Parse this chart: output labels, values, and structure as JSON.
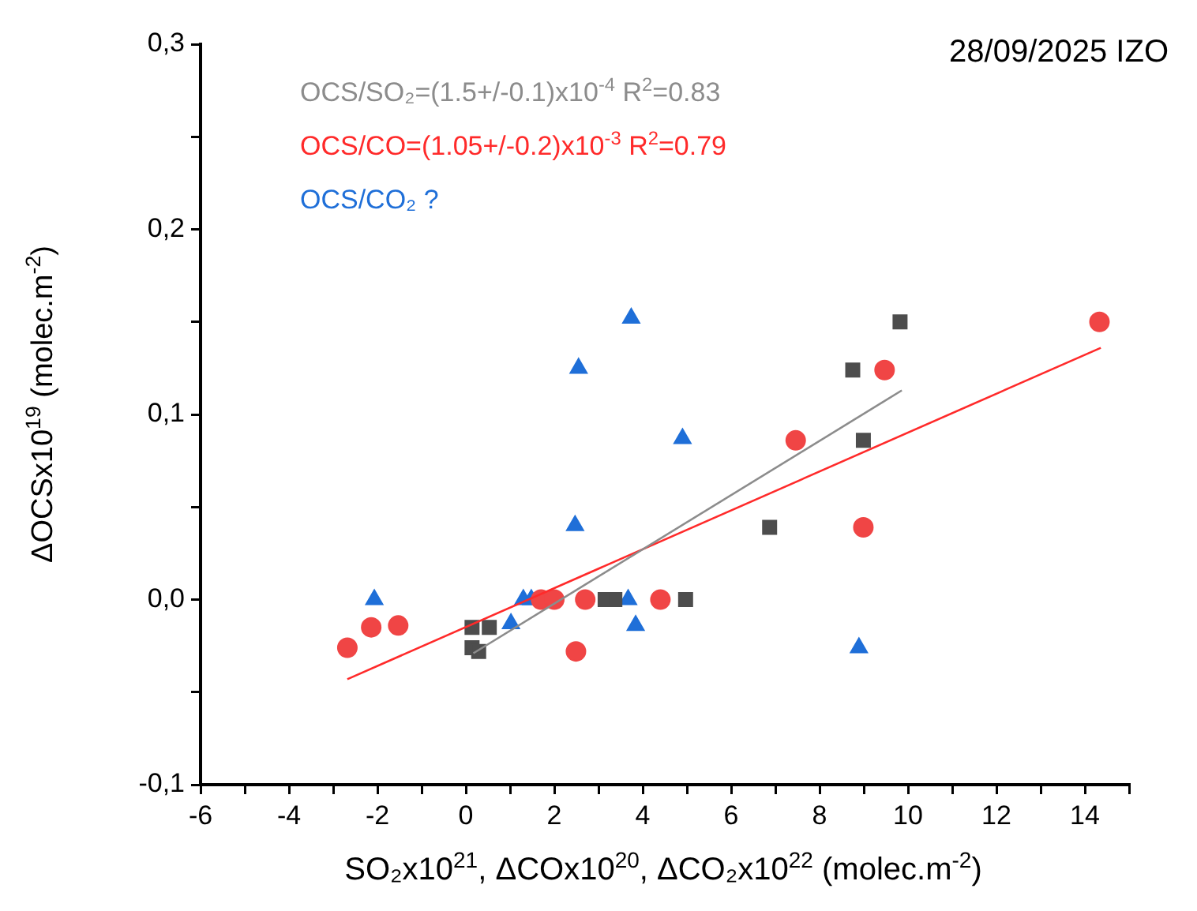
{
  "chart_data": {
    "type": "scatter",
    "title": "28/09/2025 IZO",
    "xlabel": "SO₂x10$^{21}$, ΔCOx10$^{20}$, ΔCO₂x10$^{22}$ (molec.m$^{-2}$)",
    "ylabel": "ΔOCSx10$^{19}$ (molec.m$^{-2}$)",
    "xlim": [
      -6,
      15
    ],
    "ylim": [
      -0.1,
      0.3
    ],
    "xticks": [
      -6,
      {
        "value": -5,
        "label": null
      },
      -4,
      {
        "value": -3,
        "label": null
      },
      -2,
      {
        "value": -1,
        "label": null
      },
      0,
      {
        "value": 1,
        "label": null
      },
      2,
      {
        "value": 3,
        "label": null
      },
      4,
      {
        "value": 5,
        "label": null
      },
      6,
      {
        "value": 7,
        "label": null
      },
      8,
      {
        "value": 9,
        "label": null
      },
      10,
      {
        "value": 11,
        "label": null
      },
      12,
      {
        "value": 13,
        "label": null
      },
      14,
      {
        "value": 15,
        "label": null
      }
    ],
    "yticks": [
      {
        "value": -0.1,
        "label": "-0,1"
      },
      {
        "value": -0.05,
        "label": null
      },
      {
        "value": 0,
        "label": "0,0"
      },
      {
        "value": 0.05,
        "label": null
      },
      {
        "value": 0.1,
        "label": "0,1"
      },
      {
        "value": 0.15,
        "label": null
      },
      {
        "value": 0.2,
        "label": "0,2"
      },
      {
        "value": 0.25,
        "label": null
      },
      {
        "value": 0.3,
        "label": "0,3"
      }
    ],
    "grid": false,
    "legend": "top left",
    "series": [
      {
        "type": "scatter",
        "marker": "circle",
        "color": "#f04545",
        "x": [
          -2.68,
          -2.14,
          -1.53,
          1.7,
          2.0,
          2.7,
          4.4,
          2.49,
          7.46,
          8.99,
          9.47,
          14.33
        ],
        "values": [
          -0.026,
          -0.015,
          -0.014,
          0,
          0,
          0,
          0,
          -0.028,
          0.086,
          0.039,
          0.124,
          0.15
        ]
      },
      {
        "type": "scatter",
        "marker": "square",
        "color": "#4d4d4d",
        "x": [
          0.14,
          0.53,
          0.14,
          0.29,
          3.15,
          3.37,
          4.97,
          6.87,
          8.75,
          8.99,
          9.82
        ],
        "values": [
          -0.015,
          -0.015,
          -0.026,
          -0.028,
          0,
          0,
          0,
          0.039,
          0.124,
          0.086,
          0.15
        ]
      },
      {
        "type": "scatter",
        "marker": "triangle",
        "color": "#1f6fd8",
        "name": "OCS/CO₂ ?",
        "x": [
          -2.07,
          1.02,
          1.3,
          1.48,
          3.67,
          3.84,
          2.47,
          2.55,
          3.74,
          4.9,
          8.89
        ],
        "values": [
          0,
          -0.013,
          0,
          0,
          0,
          -0.014,
          0.04,
          0.125,
          0.152,
          0.087,
          -0.026
        ]
      },
      {
        "type": "line",
        "marker": "none",
        "color": "#8c8c8c",
        "name": "OCS/SO₂=(1.5+/-0.1)x10$^{-4}$ R$^{2}$=0.83",
        "x": [
          0.17,
          9.86
        ],
        "values": [
          -0.029,
          0.113
        ]
      },
      {
        "type": "line",
        "marker": "none",
        "color": "#ff2a2a",
        "name": "OCS/CO=(1.05+/-0.2)x10$^{-3}$ R$^{2}$=0.79",
        "x": [
          -2.68,
          14.36
        ],
        "values": [
          -0.043,
          0.136
        ]
      }
    ]
  }
}
